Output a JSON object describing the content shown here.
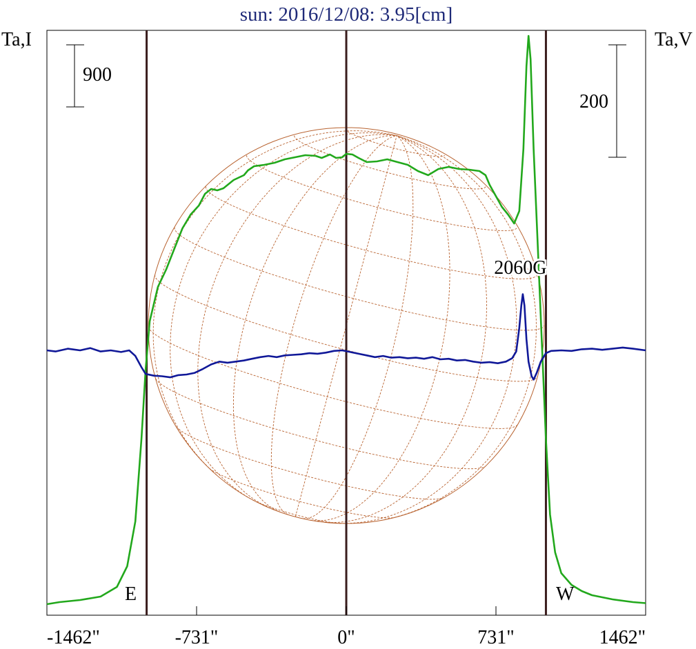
{
  "chart_data": {
    "type": "line",
    "title": "sun: 2016/12/08: 3.95[cm]",
    "left_axis_label": "Ta,I",
    "right_axis_label": "Ta,V",
    "xlim": [
      -1462,
      1462
    ],
    "x_ticks": [
      {
        "value": -1462,
        "label": "-1462\""
      },
      {
        "value": -731,
        "label": "-731\""
      },
      {
        "value": 0,
        "label": "0\""
      },
      {
        "value": 731,
        "label": "731\""
      },
      {
        "value": 1462,
        "label": "1462\""
      }
    ],
    "limb_markers": [
      {
        "x": -975,
        "label": "E"
      },
      {
        "x": 0,
        "label": ""
      },
      {
        "x": 975,
        "label": "W"
      }
    ],
    "scale_bars": [
      {
        "axis": "left",
        "value": 900,
        "label": "900"
      },
      {
        "axis": "right",
        "value": 200,
        "label": "200"
      }
    ],
    "annotation": {
      "text": "2060G",
      "x": 870
    },
    "colors": {
      "title": "#1f2a78",
      "intensity": "#22a81c",
      "polarization": "#101898",
      "limb_lines": "#3a1d1d",
      "sun_disk": "#b8622f",
      "grid": "#b8622f"
    },
    "series": [
      {
        "key": "intensity",
        "axis": "left",
        "points": [
          [
            -1462,
            0
          ],
          [
            -1400,
            30
          ],
          [
            -1300,
            60
          ],
          [
            -1200,
            110
          ],
          [
            -1120,
            250
          ],
          [
            -1070,
            550
          ],
          [
            -1030,
            1200
          ],
          [
            -1000,
            2400
          ],
          [
            -980,
            3400
          ],
          [
            -960,
            4100
          ],
          [
            -920,
            4600
          ],
          [
            -880,
            4850
          ],
          [
            -840,
            5150
          ],
          [
            -800,
            5450
          ],
          [
            -760,
            5650
          ],
          [
            -720,
            5780
          ],
          [
            -690,
            5950
          ],
          [
            -660,
            6020
          ],
          [
            -630,
            6000
          ],
          [
            -600,
            6030
          ],
          [
            -550,
            6150
          ],
          [
            -500,
            6220
          ],
          [
            -480,
            6290
          ],
          [
            -450,
            6350
          ],
          [
            -400,
            6370
          ],
          [
            -350,
            6400
          ],
          [
            -300,
            6450
          ],
          [
            -250,
            6480
          ],
          [
            -200,
            6510
          ],
          [
            -150,
            6500
          ],
          [
            -120,
            6470
          ],
          [
            -80,
            6520
          ],
          [
            -50,
            6470
          ],
          [
            -20,
            6480
          ],
          [
            0,
            6530
          ],
          [
            30,
            6520
          ],
          [
            60,
            6470
          ],
          [
            100,
            6410
          ],
          [
            150,
            6420
          ],
          [
            200,
            6450
          ],
          [
            250,
            6410
          ],
          [
            300,
            6370
          ],
          [
            350,
            6280
          ],
          [
            400,
            6220
          ],
          [
            450,
            6310
          ],
          [
            500,
            6340
          ],
          [
            550,
            6310
          ],
          [
            600,
            6300
          ],
          [
            650,
            6280
          ],
          [
            680,
            6220
          ],
          [
            700,
            6080
          ],
          [
            730,
            5920
          ],
          [
            760,
            5760
          ],
          [
            790,
            5650
          ],
          [
            820,
            5520
          ],
          [
            845,
            5700
          ],
          [
            865,
            6600
          ],
          [
            880,
            7800
          ],
          [
            890,
            8240
          ],
          [
            900,
            7900
          ],
          [
            915,
            6600
          ],
          [
            935,
            5200
          ],
          [
            955,
            3800
          ],
          [
            975,
            2400
          ],
          [
            995,
            1300
          ],
          [
            1020,
            750
          ],
          [
            1050,
            450
          ],
          [
            1100,
            280
          ],
          [
            1150,
            190
          ],
          [
            1200,
            130
          ],
          [
            1300,
            70
          ],
          [
            1400,
            30
          ],
          [
            1462,
            15
          ]
        ]
      },
      {
        "key": "polarization",
        "axis": "right",
        "points": [
          [
            -1462,
            0
          ],
          [
            -1420,
            -2
          ],
          [
            -1360,
            3
          ],
          [
            -1300,
            0
          ],
          [
            -1250,
            4
          ],
          [
            -1200,
            -2
          ],
          [
            -1150,
            0
          ],
          [
            -1100,
            -3
          ],
          [
            -1060,
            0
          ],
          [
            -1030,
            -10
          ],
          [
            -1000,
            -30
          ],
          [
            -980,
            -42
          ],
          [
            -940,
            -45
          ],
          [
            -900,
            -46
          ],
          [
            -860,
            -48
          ],
          [
            -820,
            -44
          ],
          [
            -780,
            -43
          ],
          [
            -740,
            -40
          ],
          [
            -700,
            -33
          ],
          [
            -660,
            -25
          ],
          [
            -620,
            -20
          ],
          [
            -580,
            -22
          ],
          [
            -540,
            -20
          ],
          [
            -500,
            -18
          ],
          [
            -460,
            -15
          ],
          [
            -420,
            -12
          ],
          [
            -380,
            -10
          ],
          [
            -340,
            -12
          ],
          [
            -300,
            -9
          ],
          [
            -260,
            -8
          ],
          [
            -220,
            -7
          ],
          [
            -180,
            -5
          ],
          [
            -140,
            -6
          ],
          [
            -100,
            -4
          ],
          [
            -60,
            -1
          ],
          [
            -20,
            0
          ],
          [
            20,
            -3
          ],
          [
            60,
            -6
          ],
          [
            100,
            -9
          ],
          [
            140,
            -12
          ],
          [
            180,
            -10
          ],
          [
            220,
            -13
          ],
          [
            260,
            -12
          ],
          [
            300,
            -14
          ],
          [
            340,
            -13
          ],
          [
            380,
            -15
          ],
          [
            420,
            -12
          ],
          [
            460,
            -16
          ],
          [
            500,
            -15
          ],
          [
            540,
            -18
          ],
          [
            580,
            -17
          ],
          [
            620,
            -20
          ],
          [
            660,
            -22
          ],
          [
            700,
            -21
          ],
          [
            740,
            -23
          ],
          [
            780,
            -20
          ],
          [
            810,
            -14
          ],
          [
            830,
            -2
          ],
          [
            845,
            40
          ],
          [
            855,
            80
          ],
          [
            862,
            100
          ],
          [
            870,
            80
          ],
          [
            880,
            20
          ],
          [
            890,
            -20
          ],
          [
            905,
            -46
          ],
          [
            915,
            -52
          ],
          [
            930,
            -40
          ],
          [
            950,
            -20
          ],
          [
            975,
            -5
          ],
          [
            1000,
            -1
          ],
          [
            1050,
            0
          ],
          [
            1100,
            -1
          ],
          [
            1150,
            2
          ],
          [
            1200,
            3
          ],
          [
            1250,
            1
          ],
          [
            1300,
            3
          ],
          [
            1350,
            5
          ],
          [
            1400,
            3
          ],
          [
            1462,
            0
          ]
        ]
      }
    ]
  }
}
